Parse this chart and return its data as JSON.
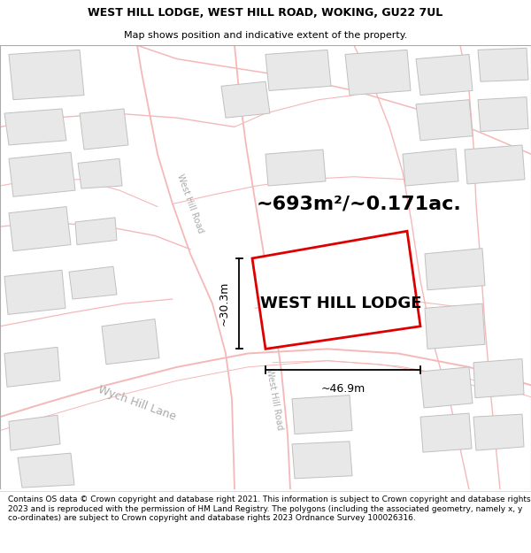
{
  "title_line1": "WEST HILL LODGE, WEST HILL ROAD, WOKING, GU22 7UL",
  "title_line2": "Map shows position and indicative extent of the property.",
  "area_text": "~693m²/~0.171ac.",
  "property_label": "WEST HILL LODGE",
  "dim_width": "~46.9m",
  "dim_height": "~30.3m",
  "footer_text": "Contains OS data © Crown copyright and database right 2021. This information is subject to Crown copyright and database rights 2023 and is reproduced with the permission of HM Land Registry. The polygons (including the associated geometry, namely x, y co-ordinates) are subject to Crown copyright and database rights 2023 Ordnance Survey 100026316.",
  "bg_color": "#ffffff",
  "road_color": "#f5b8b8",
  "road_lw": 1.0,
  "building_fill": "#e8e8e8",
  "building_outline": "#c0c0c0",
  "property_outline": "#dd0000",
  "road_label_color": "#aaaaaa",
  "title_fontsize": 9,
  "subtitle_fontsize": 8,
  "area_fontsize": 16,
  "property_label_fontsize": 13,
  "footer_fontsize": 6.5,
  "title_bold": true
}
